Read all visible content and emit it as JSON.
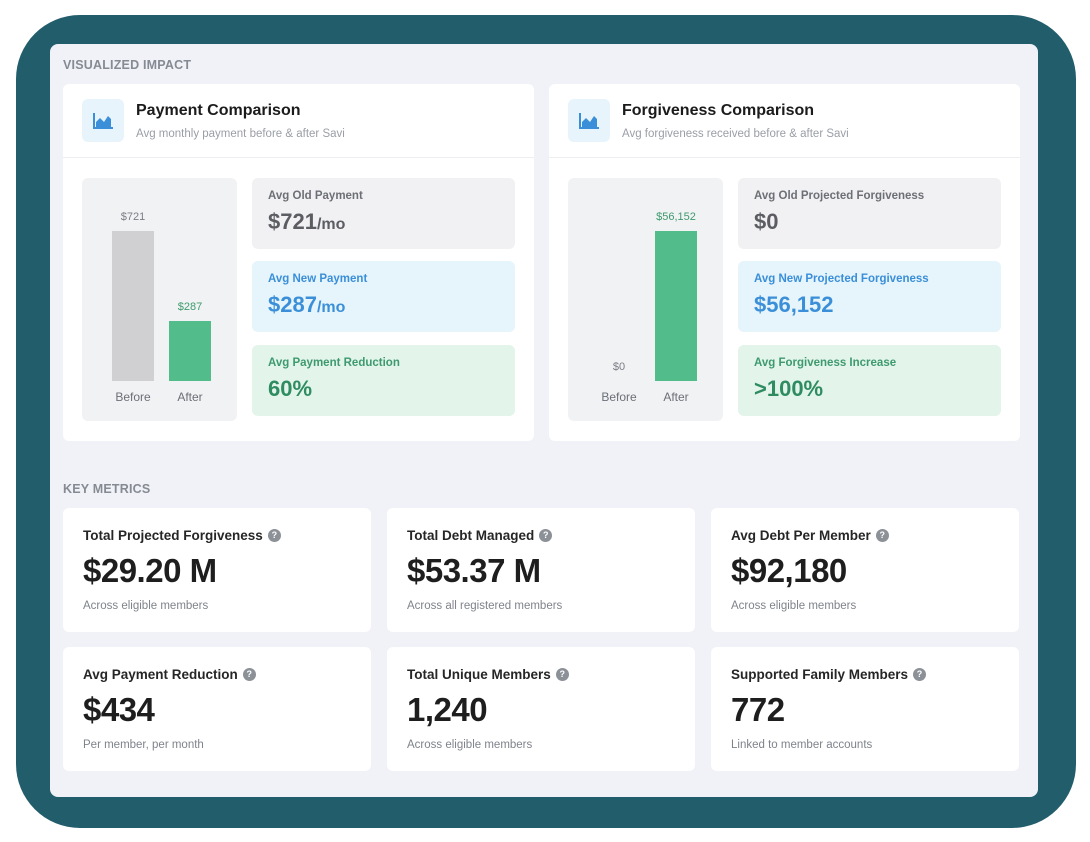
{
  "colors": {
    "frame": "#225d6b",
    "bar_before": "#d0d0d2",
    "bar_after": "#52bc8a",
    "blue_accent": "#3a8fd8",
    "green_accent": "#2f8c60"
  },
  "visualized": {
    "section_label": "VISUALIZED IMPACT",
    "payment": {
      "icon": "area-chart-icon",
      "title": "Payment Comparison",
      "subtitle": "Avg monthly payment before & after Savi",
      "chart": {
        "max": 721,
        "bars": [
          {
            "label": "Before",
            "value": 721,
            "value_label": "$721"
          },
          {
            "label": "After",
            "value": 287,
            "value_label": "$287"
          }
        ]
      },
      "stats": [
        {
          "label": "Avg Old Payment",
          "value": "$721",
          "unit": "/mo"
        },
        {
          "label": "Avg New Payment",
          "value": "$287",
          "unit": "/mo"
        },
        {
          "label": "Avg Payment Reduction",
          "value": "60%",
          "unit": ""
        }
      ]
    },
    "forgiveness": {
      "icon": "area-chart-icon",
      "title": "Forgiveness Comparison",
      "subtitle": "Avg forgiveness received before & after Savi",
      "chart": {
        "max": 56152,
        "bars": [
          {
            "label": "Before",
            "value": 0,
            "value_label": "$0"
          },
          {
            "label": "After",
            "value": 56152,
            "value_label": "$56,152"
          }
        ]
      },
      "stats": [
        {
          "label": "Avg Old Projected Forgiveness",
          "value": "$0",
          "unit": ""
        },
        {
          "label": "Avg New Projected Forgiveness",
          "value": "$56,152",
          "unit": ""
        },
        {
          "label": "Avg Forgiveness Increase",
          "value": ">100%",
          "unit": ""
        }
      ]
    }
  },
  "metrics": {
    "section_label": "KEY METRICS",
    "help_icon": "question-circle-icon",
    "items": [
      {
        "label": "Total Projected Forgiveness",
        "value": "$29.20 M",
        "sub": "Across eligible members"
      },
      {
        "label": "Total Debt Managed",
        "value": "$53.37 M",
        "sub": "Across all registered members"
      },
      {
        "label": "Avg Debt Per Member",
        "value": "$92,180",
        "sub": "Across eligible members"
      },
      {
        "label": "Avg Payment Reduction",
        "value": "$434",
        "sub": "Per member, per month"
      },
      {
        "label": "Total Unique Members",
        "value": "1,240",
        "sub": "Across eligible members"
      },
      {
        "label": "Supported Family Members",
        "value": "772",
        "sub": "Linked to member accounts"
      }
    ]
  }
}
